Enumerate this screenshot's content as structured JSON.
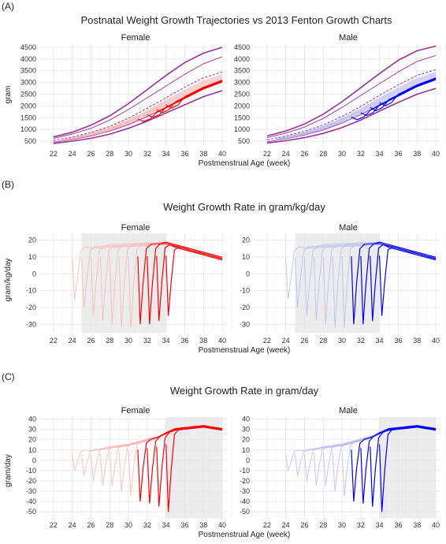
{
  "colors": {
    "female_accent": "#ff0000",
    "male_accent": "#0000ff",
    "fenton_percentiles": "#993399",
    "female_light": "#f6b5b5",
    "male_light": "#b9b9f2",
    "shade": "#ececec",
    "grid": "#e6e6e6"
  },
  "panels": [
    {
      "tag": "(A)",
      "title": "Postnatal Weight Growth Trajectories vs 2013 Fenton Growth Charts",
      "xlabel": "Postmenstrual Age (week)",
      "ylabel": "gram",
      "facets": [
        "Female",
        "Male"
      ]
    },
    {
      "tag": "(B)",
      "title": "Weight Growth Rate in gram/kg/day",
      "xlabel": "Postmenstrual Age (week)",
      "ylabel": "gram/kg/day",
      "facets": [
        "Female",
        "Male"
      ]
    },
    {
      "tag": "(C)",
      "title": "Weight Growth Rate in gram/day",
      "xlabel": "Postmenstrual Age (week)",
      "ylabel": "gram/day",
      "facets": [
        "Female",
        "Male"
      ]
    }
  ],
  "chart_data": [
    {
      "type": "line",
      "title": "Postnatal Weight Growth Trajectories vs 2013 Fenton Growth Charts",
      "xlabel": "Postmenstrual Age (week)",
      "ylabel": "gram",
      "facets": [
        "Female",
        "Male"
      ],
      "xlim": [
        20.5,
        40.5
      ],
      "ylim": [
        300,
        4600
      ],
      "xticks": [
        22,
        24,
        26,
        28,
        30,
        32,
        34,
        36,
        38,
        40
      ],
      "yticks": [
        500,
        1000,
        1500,
        2000,
        2500,
        3000,
        3500,
        4000,
        4500
      ],
      "x": [
        22,
        24,
        26,
        28,
        30,
        32,
        34,
        36,
        38,
        40
      ],
      "fenton_female": {
        "p3": [
          400,
          500,
          620,
          800,
          1050,
          1350,
          1700,
          2050,
          2400,
          2650
        ],
        "p10": [
          450,
          570,
          720,
          930,
          1200,
          1550,
          1950,
          2350,
          2750,
          3050
        ],
        "p50": [
          530,
          680,
          870,
          1130,
          1480,
          1900,
          2350,
          2800,
          3200,
          3450
        ],
        "p90": [
          620,
          800,
          1050,
          1400,
          1850,
          2350,
          2850,
          3350,
          3800,
          4100
        ],
        "p97": [
          680,
          880,
          1180,
          1580,
          2100,
          2700,
          3300,
          3850,
          4250,
          4500
        ]
      },
      "fenton_male": {
        "p3": [
          420,
          520,
          650,
          830,
          1080,
          1400,
          1780,
          2150,
          2500,
          2750
        ],
        "p10": [
          470,
          600,
          760,
          980,
          1270,
          1630,
          2050,
          2450,
          2850,
          3150
        ],
        "p50": [
          560,
          720,
          920,
          1190,
          1550,
          1980,
          2450,
          2900,
          3300,
          3550
        ],
        "p90": [
          650,
          840,
          1100,
          1470,
          1940,
          2450,
          2950,
          3450,
          3900,
          4150
        ],
        "p97": [
          720,
          930,
          1230,
          1650,
          2180,
          2780,
          3380,
          3950,
          4350,
          4550
        ]
      }
    },
    {
      "type": "line",
      "title": "Weight Growth Rate in gram/kg/day",
      "xlabel": "Postmenstrual Age (week)",
      "ylabel": "gram/kg/day",
      "facets": [
        "Female",
        "Male"
      ],
      "xlim": [
        20.5,
        40.5
      ],
      "ylim": [
        -35,
        24
      ],
      "xticks": [
        22,
        24,
        26,
        28,
        30,
        32,
        34,
        36,
        38,
        40
      ],
      "yticks": [
        -30,
        -20,
        -10,
        0,
        10,
        20
      ],
      "shaded_x_range": [
        25,
        34
      ],
      "birth_ages": [
        24,
        25,
        26,
        27,
        28,
        29,
        30,
        31,
        32,
        33,
        34
      ],
      "highlighted_birth_ages": [
        31,
        32,
        33,
        34
      ],
      "nadir_values": [
        -15,
        -20,
        -25,
        -28,
        -30,
        -32,
        -32,
        -30,
        -30,
        -28,
        -25
      ],
      "plateau": [
        [
          26,
          16
        ],
        [
          30,
          17
        ],
        [
          34,
          18
        ],
        [
          36,
          15
        ],
        [
          38,
          12
        ],
        [
          40,
          9
        ]
      ]
    },
    {
      "type": "line",
      "title": "Weight Growth Rate in gram/day",
      "xlabel": "Postmenstrual Age (week)",
      "ylabel": "gram/day",
      "facets": [
        "Female",
        "Male"
      ],
      "xlim": [
        20.5,
        40.5
      ],
      "ylim": [
        -56,
        42
      ],
      "xticks": [
        22,
        24,
        26,
        28,
        30,
        32,
        34,
        36,
        38,
        40
      ],
      "yticks": [
        -50,
        -40,
        -30,
        -20,
        -10,
        0,
        10,
        20,
        30,
        40
      ],
      "shaded_x_range": [
        34,
        40
      ],
      "birth_ages": [
        24,
        25,
        26,
        27,
        28,
        29,
        30,
        31,
        32,
        33,
        34
      ],
      "highlighted_birth_ages": [
        31,
        32,
        33,
        34
      ],
      "nadir_values": [
        -10,
        -15,
        -20,
        -25,
        -25,
        -30,
        -35,
        -40,
        -42,
        -45,
        -50
      ],
      "plateau": [
        [
          26,
          10
        ],
        [
          30,
          15
        ],
        [
          33,
          22
        ],
        [
          35,
          30
        ],
        [
          38,
          33
        ],
        [
          40,
          30
        ]
      ]
    }
  ]
}
